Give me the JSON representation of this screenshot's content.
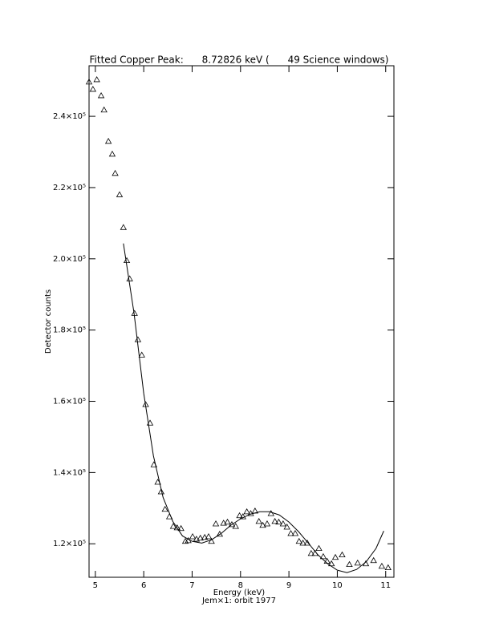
{
  "chart_data": {
    "type": "scatter",
    "title": "Fitted Copper Peak:      8.72826 keV (      49 Science windows)",
    "x_label": "Energy (keV)",
    "subtitle": "Jem×1: orbit 1977",
    "y_label": "Detector counts",
    "xlim": [
      4.87,
      11.17
    ],
    "ylim": [
      110600,
      254200
    ],
    "xticks": [
      5,
      6,
      7,
      8,
      9,
      10,
      11
    ],
    "yticks": [
      {
        "value": 120000,
        "label": "1.2×10⁵"
      },
      {
        "value": 140000,
        "label": "1.4×10⁵"
      },
      {
        "value": 160000,
        "label": "1.6×10⁵"
      },
      {
        "value": 180000,
        "label": "1.8×10⁵"
      },
      {
        "value": 200000,
        "label": "2.0×10⁵"
      },
      {
        "value": 220000,
        "label": "2.2×10⁵"
      },
      {
        "value": 240000,
        "label": "2.4×10⁵"
      }
    ],
    "series": [
      {
        "type": "scatter",
        "marker": "triangle",
        "color": "#000000",
        "x": [
          4.87,
          4.95,
          5.03,
          5.12,
          5.18,
          5.27,
          5.35,
          5.41,
          5.5,
          5.58,
          5.65,
          5.71,
          5.81,
          5.88,
          5.96,
          6.04,
          6.13,
          6.21,
          6.29,
          6.36,
          6.44,
          6.53,
          6.61,
          6.69,
          6.77,
          6.86,
          6.92,
          7.01,
          7.09,
          7.17,
          7.26,
          7.34,
          7.4,
          7.49,
          7.57,
          7.65,
          7.73,
          7.82,
          7.9,
          7.98,
          8.05,
          8.13,
          8.21,
          8.3,
          8.38,
          8.46,
          8.55,
          8.63,
          8.71,
          8.79,
          8.88,
          8.96,
          9.04,
          9.13,
          9.21,
          9.29,
          9.38,
          9.46,
          9.54,
          9.62,
          9.71,
          9.79,
          9.88,
          9.96,
          10.1,
          10.25,
          10.42,
          10.59,
          10.75,
          10.92,
          11.05
        ],
        "values": [
          249650,
          247600,
          250300,
          245800,
          241800,
          233000,
          229400,
          224000,
          218000,
          208800,
          199500,
          194400,
          184700,
          177300,
          173000,
          159100,
          153900,
          142200,
          137300,
          134600,
          129700,
          127600,
          124900,
          124500,
          124300,
          120700,
          120900,
          122000,
          121300,
          121600,
          121800,
          122000,
          120700,
          125600,
          122700,
          125800,
          126100,
          125400,
          124900,
          127900,
          127600,
          129000,
          128500,
          129200,
          126300,
          125200,
          125600,
          128500,
          126300,
          126100,
          125600,
          124700,
          122900,
          122900,
          120700,
          120200,
          120200,
          117300,
          117300,
          118700,
          116400,
          115100,
          114400,
          116200,
          116900,
          114200,
          114600,
          114400,
          115300,
          113700,
          113300
        ]
      },
      {
        "type": "line",
        "color": "#000000",
        "x": [
          5.58,
          5.8,
          6.0,
          6.2,
          6.4,
          6.6,
          6.8,
          7.0,
          7.2,
          7.4,
          7.6,
          7.8,
          8.0,
          8.2,
          8.4,
          8.6,
          8.8,
          9.0,
          9.2,
          9.4,
          9.6,
          9.8,
          10.0,
          10.2,
          10.4,
          10.6,
          10.8,
          10.96
        ],
        "values": [
          204300,
          184700,
          162200,
          144700,
          133000,
          126300,
          122200,
          120700,
          120200,
          121100,
          122900,
          125200,
          127000,
          128300,
          129000,
          129000,
          128100,
          126100,
          123400,
          120200,
          116900,
          114400,
          112600,
          111900,
          112800,
          115000,
          118700,
          123600
        ]
      }
    ]
  }
}
